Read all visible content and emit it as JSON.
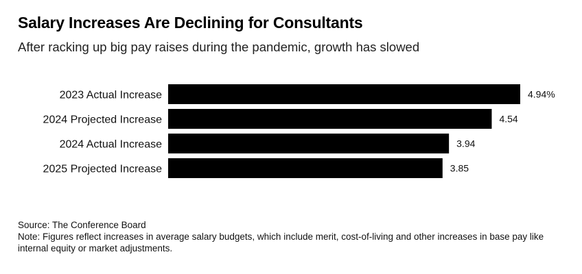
{
  "chart_data": {
    "type": "bar",
    "orientation": "horizontal",
    "title": "Salary Increases Are Declining for Consultants",
    "subtitle": "After racking up big pay raises during the pandemic, growth has slowed",
    "categories": [
      "2023 Actual Increase",
      "2024 Projected Increase",
      "2024 Actual Increase",
      "2025 Projected Increase"
    ],
    "values": [
      4.94,
      4.54,
      3.94,
      3.85
    ],
    "value_labels": [
      "4.94%",
      "4.54",
      "3.94",
      "3.85"
    ],
    "xlim": [
      0,
      4.94
    ],
    "bar_color": "#000000",
    "grid": false,
    "legend": "none"
  },
  "footer": {
    "source": "Source: The Conference Board",
    "note": "Note: Figures reflect increases in average salary budgets, which include merit, cost-of-living and other increases in base pay like internal equity or market adjustments."
  }
}
